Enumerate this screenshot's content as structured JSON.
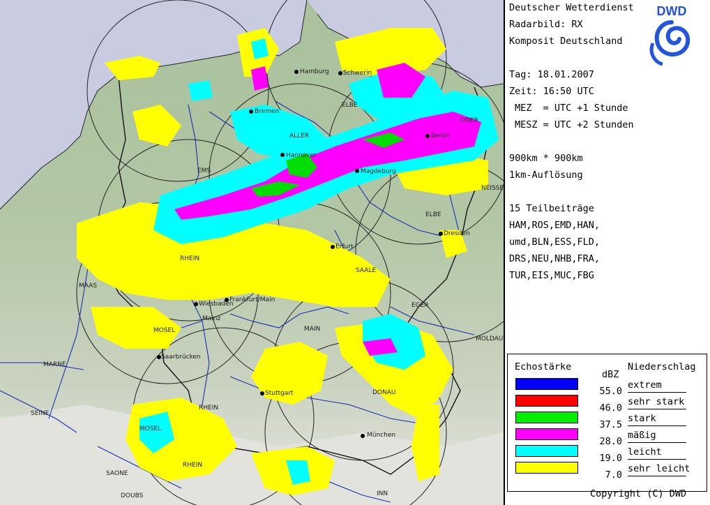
{
  "header": {
    "org": "Deutscher Wetterdienst",
    "product": "Radarbild: RX",
    "composite": "Komposit Deutschland",
    "date": "Tag: 18.01.2007",
    "time": "Zeit: 16:50 UTC",
    "mez": "MEZ  = UTC +1 Stunde",
    "mesz": "MESZ = UTC +2 Stunden",
    "extent": "900km * 900km",
    "resolution": "1km-Auflösung",
    "contrib_title": "15 Teilbeiträge",
    "contrib_lines": [
      "HAM,ROS,EMD,HAN,",
      "umd,BLN,ESS,FLD,",
      "DRS,NEU,NHB,FRA,",
      "TUR,EIS,MUC,FBG"
    ],
    "logo_text": "DWD",
    "copyright": "Copyright (C) DWD"
  },
  "legend": {
    "left_title": "Echostärke",
    "unit": "dBZ",
    "right_title": "Niederschlag",
    "levels": [
      {
        "color": "#0000ff",
        "value": "55.0",
        "label": "extrem"
      },
      {
        "color": "#ff0000",
        "value": "46.0",
        "label": "sehr stark"
      },
      {
        "color": "#00ee00",
        "value": "37.5",
        "label": "stark"
      },
      {
        "color": "#ff00ff",
        "value": "28.0",
        "label": "mäßig"
      },
      {
        "color": "#00ffff",
        "value": "19.0",
        "label": "leicht"
      },
      {
        "color": "#ffff00",
        "value": "7.0",
        "label": "sehr leicht"
      }
    ]
  },
  "map": {
    "cities": [
      "Hamburg",
      "Schwerin",
      "Bremen",
      "Berlin",
      "Magdeburg",
      "Hannover",
      "Erfurt",
      "Dresden",
      "Wiesbaden",
      "Mainz",
      "Frankfurt/Main",
      "Stuttgart",
      "München",
      "Saarbrücken"
    ],
    "rivers": [
      "ELBE",
      "ALLER",
      "EMS",
      "ODER",
      "NEISSE",
      "RHEIN",
      "MAAS",
      "SAALE",
      "EGER",
      "MOSEL",
      "MAIN",
      "MOLDAU",
      "MARNE",
      "DONAU",
      "SEINE",
      "SAONE",
      "DOUBS",
      "INN"
    ],
    "colors": {
      "sea": "#c9cce0",
      "land_low": "#a8bf9a",
      "land_high": "#dcdcd5",
      "rivers": "#1a2fb0"
    }
  }
}
